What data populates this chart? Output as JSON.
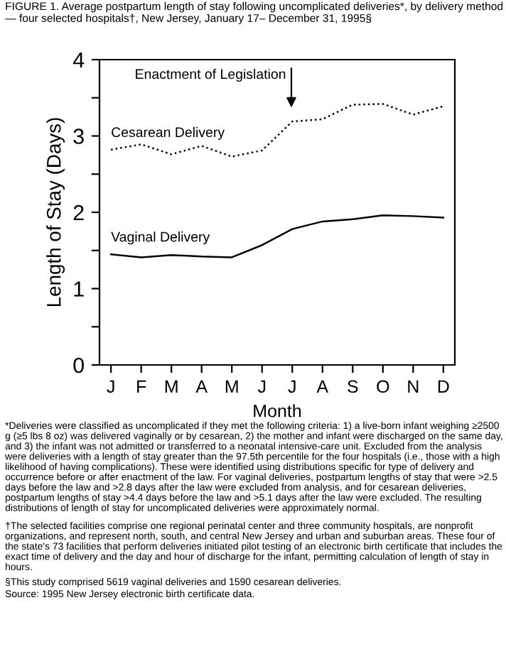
{
  "chart_data": {
    "type": "line",
    "title": "FIGURE 1. Average postpartum length of stay following uncomplicated deliveries*, by delivery method — four selected hospitals†, New Jersey, January 17– December 31, 1995§",
    "xlabel": "Month",
    "ylabel": "Length of Stay (Days)",
    "categories": [
      "J",
      "F",
      "M",
      "A",
      "M",
      "J",
      "J",
      "A",
      "S",
      "O",
      "N",
      "D"
    ],
    "ylim": [
      0,
      4
    ],
    "yticks": [
      0,
      {
        "value": 0.5,
        "label": null
      },
      1,
      {
        "value": 1.5,
        "label": null
      },
      2,
      {
        "value": 2.5,
        "label": null
      },
      3,
      {
        "value": 3.5,
        "label": null
      },
      4
    ],
    "series": [
      {
        "name": "Cesarean Delivery",
        "color": "#000000",
        "line_style": "dotted",
        "values": [
          2.82,
          2.89,
          2.76,
          2.87,
          2.73,
          2.81,
          3.19,
          3.22,
          3.41,
          3.42,
          3.28,
          3.39
        ]
      },
      {
        "name": "Vaginal Delivery",
        "color": "#000000",
        "line_style": "solid",
        "values": [
          1.45,
          1.41,
          1.44,
          1.42,
          1.41,
          1.57,
          1.78,
          1.88,
          1.91,
          1.96,
          1.95,
          1.93
        ]
      }
    ],
    "grid": false,
    "legend": false,
    "marker": "none",
    "annotations": [
      "Enactment of Legislation",
      "*Deliveries were classified as uncomplicated if they met the following criteria: 1) a live-born infant weighing ≥2500 g (≥5 lbs 8 oz) was delivered vaginally or by cesarean, 2) the mother and infant were discharged on the same day, and 3) the infant was not admitted or transferred to a neonatal intensive-care unit. Excluded from the analysis were deliveries with a length of stay greater than the 97.5th percentile for the four hospitals (i.e., those with a high likelihood of having complications). These were identified using distributions specific for type of delivery and occurrence before or after enactment of the law. For vaginal deliveries, postpartum lengths of stay that were >2.5 days before the law and >2.8 days after the law were excluded from analysis, and for cesarean deliveries, postpartum lengths of stay >4.4 days before the law and >5.1 days after the law were excluded. The resulting distributions of length of stay for uncomplicated deliveries were approximately normal.",
      "†The selected facilities comprise one regional perinatal center and three community hospitals, are nonprofit organizations, and represent north, south, and central New Jersey and urban and suburban areas. These four of the state's 73 facilities that perform deliveries initiated pilot testing of an electronic birth certificate that includes the exact time of delivery and the day and hour of discharge for the infant, permitting calculation of length of stay in hours.",
      "§This study comprised 5619 vaginal deliveries and 1590 cesarean deliveries.",
      "Source: 1995 New Jersey electronic birth certificate data."
    ]
  }
}
